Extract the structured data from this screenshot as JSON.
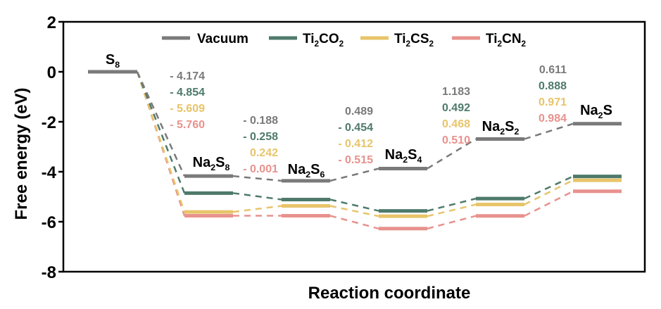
{
  "chart_data": {
    "type": "line",
    "title": "",
    "xlabel": "Reaction coordinate",
    "ylabel": "Free energy (eV)",
    "ylim": [
      -8,
      2
    ],
    "yticks": [
      2,
      0,
      -2,
      -4,
      -6,
      -8
    ],
    "ytick_labels": [
      "2",
      "0",
      "-2",
      "-4",
      "-6",
      "-8"
    ],
    "grid": false,
    "legend_position": "top",
    "categories": [
      {
        "base": "S",
        "sub": "8",
        "sub2": "",
        "suffix": ""
      },
      {
        "base": "Na",
        "sub": "2",
        "mid": "S",
        "sub2": "8"
      },
      {
        "base": "Na",
        "sub": "2",
        "mid": "S",
        "sub2": "6"
      },
      {
        "base": "Na",
        "sub": "2",
        "mid": "S",
        "sub2": "4"
      },
      {
        "base": "Na",
        "sub": "2",
        "mid": "S",
        "sub2": "2"
      },
      {
        "base": "Na",
        "sub": "2",
        "mid": "S",
        "sub2": ""
      }
    ],
    "category_names": [
      "S8",
      "Na2S8",
      "Na2S6",
      "Na2S4",
      "Na2S2",
      "Na2S"
    ],
    "series": [
      {
        "name": "Vacuum",
        "legend": {
          "base": "Vacuum",
          "sub": "",
          "mid": "",
          "sub2": ""
        },
        "color": "#7a7a7a",
        "values": [
          0,
          -4.174,
          -4.362,
          -3.873,
          -2.69,
          -2.079
        ],
        "step_labels": [
          "- 4.174",
          "- 0.188",
          "0.489",
          "1.183",
          "0.611"
        ]
      },
      {
        "name": "Ti2CO2",
        "legend": {
          "base": "Ti",
          "sub": "2",
          "mid": "CO",
          "sub2": "2"
        },
        "color": "#4e7a6b",
        "values": [
          0,
          -4.854,
          -5.112,
          -5.566,
          -5.074,
          -4.186
        ],
        "step_labels": [
          "- 4.854",
          "- 0.258",
          "- 0.454",
          "0.492",
          "0.888"
        ]
      },
      {
        "name": "Ti2CS2",
        "legend": {
          "base": "Ti",
          "sub": "2",
          "mid": "CS",
          "sub2": "2"
        },
        "color": "#e8c46a",
        "values": [
          0,
          -5.609,
          -5.367,
          -5.779,
          -5.311,
          -4.34
        ],
        "step_labels": [
          "- 5.609",
          "0.242",
          "- 0.412",
          "0.468",
          "0.971"
        ]
      },
      {
        "name": "Ti2CN2",
        "legend": {
          "base": "Ti",
          "sub": "2",
          "mid": "CN",
          "sub2": "2"
        },
        "color": "#e8928d",
        "values": [
          0,
          -5.76,
          -5.761,
          -6.276,
          -5.766,
          -4.782
        ],
        "step_labels": [
          "- 5.760",
          "- 0.001",
          "- 0.515",
          "0.510",
          "0.984"
        ]
      }
    ]
  }
}
